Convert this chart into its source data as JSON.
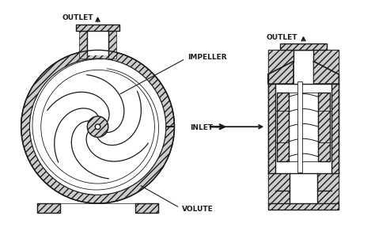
{
  "bg_color": "#ffffff",
  "line_color": "#1a1a1a",
  "labels": {
    "outlet_left": "OUTLET",
    "outlet_right": "OUTLET",
    "impeller": "IMPELLER",
    "inlet": "INLET",
    "volute": "VOLUTE"
  },
  "figsize": [
    4.74,
    3.11
  ],
  "dpi": 100,
  "lw_main": 1.0,
  "lw_thin": 0.6,
  "hatch_density": "////",
  "hatch_color": "#aaaaaa"
}
